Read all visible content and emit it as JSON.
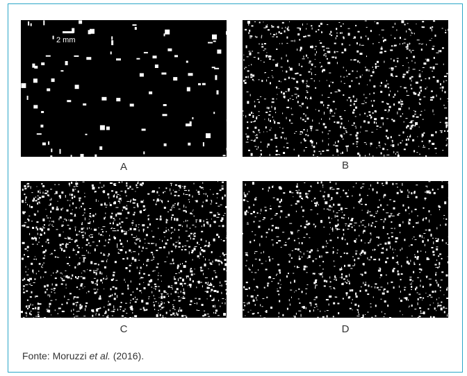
{
  "figure": {
    "panels": [
      {
        "id": "A",
        "label": "A",
        "particle_density": "low",
        "particle_size": "large"
      },
      {
        "id": "B",
        "label": "B",
        "particle_density": "high",
        "particle_size": "small"
      },
      {
        "id": "C",
        "label": "C",
        "particle_density": "very-high",
        "particle_size": "small"
      },
      {
        "id": "D",
        "label": "D",
        "particle_density": "high",
        "particle_size": "small"
      }
    ],
    "scale_bar": {
      "label": "2 mm"
    },
    "source": {
      "prefix": "Fonte: Moruzzi ",
      "etal": "et al.",
      "suffix": " (2016)."
    },
    "colors": {
      "border": "#2aa6c8",
      "panel_background": "#000000",
      "particles": "#ffffff",
      "text": "#333333"
    }
  }
}
